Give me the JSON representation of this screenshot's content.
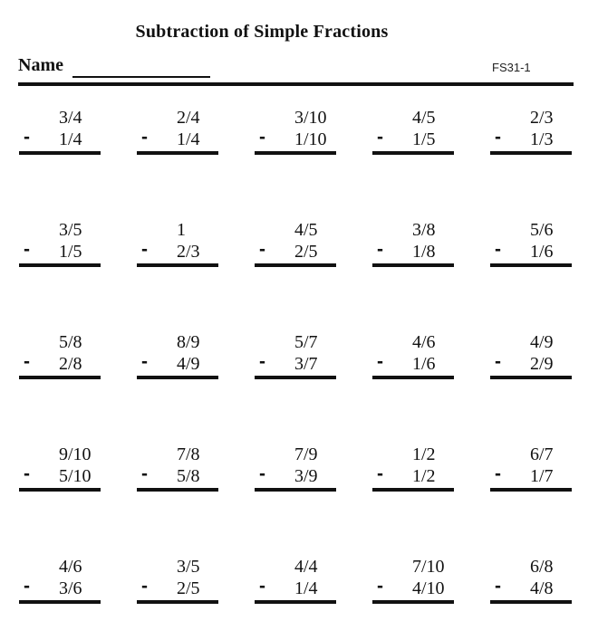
{
  "header": {
    "title": "Subtraction of Simple Fractions",
    "name_label": "Name",
    "name_value": "",
    "worksheet_code": "FS31-1"
  },
  "operator": "-",
  "problems": {
    "rows": [
      [
        {
          "top": "3/4",
          "bottom": "1/4"
        },
        {
          "top": "2/4",
          "bottom": "1/4"
        },
        {
          "top": "3/10",
          "bottom": "1/10"
        },
        {
          "top": "4/5",
          "bottom": "1/5"
        },
        {
          "top": "2/3",
          "bottom": "1/3"
        }
      ],
      [
        {
          "top": "3/5",
          "bottom": "1/5"
        },
        {
          "top": "1",
          "bottom": "2/3"
        },
        {
          "top": "4/5",
          "bottom": "2/5"
        },
        {
          "top": "3/8",
          "bottom": "1/8"
        },
        {
          "top": "5/6",
          "bottom": "1/6"
        }
      ],
      [
        {
          "top": "5/8",
          "bottom": "2/8"
        },
        {
          "top": "8/9",
          "bottom": "4/9"
        },
        {
          "top": "5/7",
          "bottom": "3/7"
        },
        {
          "top": "4/6",
          "bottom": "1/6"
        },
        {
          "top": "4/9",
          "bottom": "2/9"
        }
      ],
      [
        {
          "top": "9/10",
          "bottom": "5/10"
        },
        {
          "top": "7/8",
          "bottom": "5/8"
        },
        {
          "top": "7/9",
          "bottom": "3/9"
        },
        {
          "top": "1/2",
          "bottom": "1/2"
        },
        {
          "top": "6/7",
          "bottom": "1/7"
        }
      ],
      [
        {
          "top": "4/6",
          "bottom": "3/6"
        },
        {
          "top": "3/5",
          "bottom": "2/5"
        },
        {
          "top": "4/4",
          "bottom": "1/4"
        },
        {
          "top": "7/10",
          "bottom": "4/10"
        },
        {
          "top": "6/8",
          "bottom": "4/8"
        }
      ]
    ]
  }
}
